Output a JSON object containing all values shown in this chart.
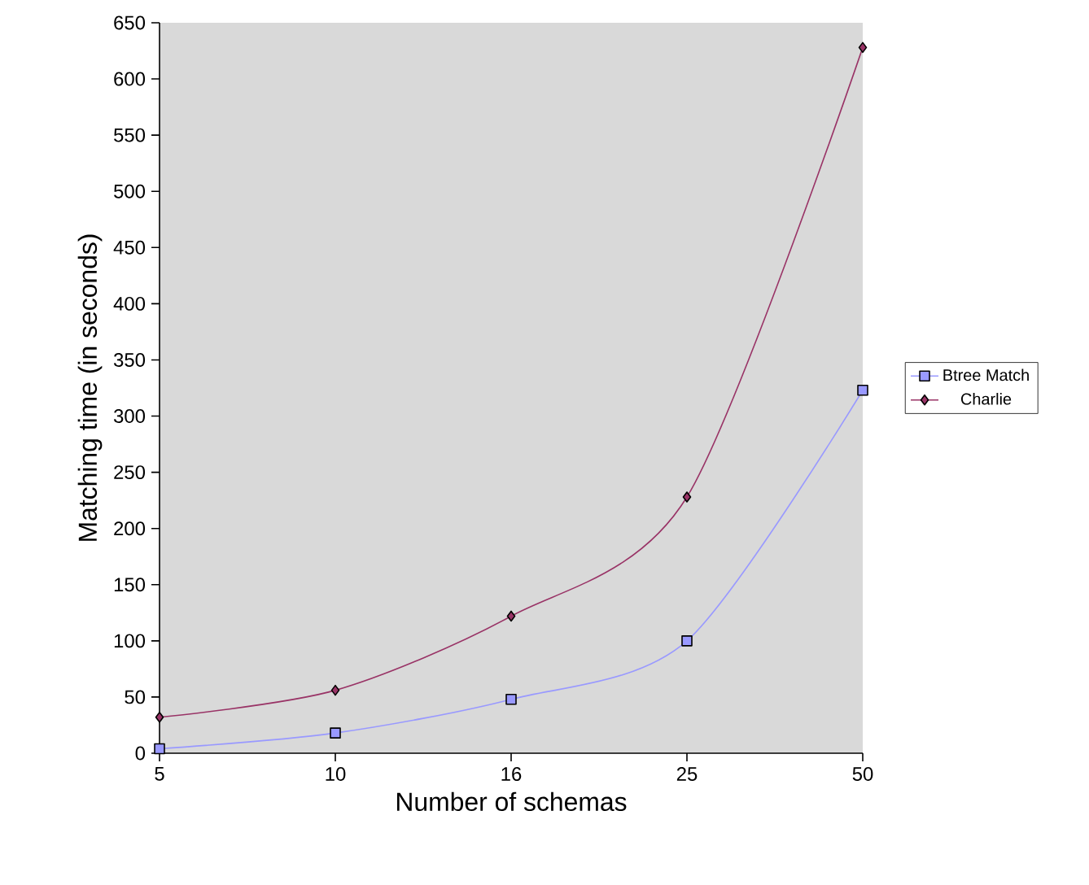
{
  "chart_data": {
    "type": "line",
    "xlabel": "Number of schemas",
    "ylabel": "Matching time (in seconds)",
    "categories": [
      "5",
      "10",
      "16",
      "25",
      "50"
    ],
    "series": [
      {
        "name": "Btree Match",
        "color": "#9999ff",
        "marker": "square",
        "values": [
          4,
          18,
          48,
          100,
          323
        ]
      },
      {
        "name": "Charlie",
        "color": "#993366",
        "marker": "diamond",
        "values": [
          32,
          56,
          122,
          228,
          628
        ]
      }
    ],
    "ylim": [
      0,
      650
    ],
    "yticks": [
      0,
      50,
      100,
      150,
      200,
      250,
      300,
      350,
      400,
      450,
      500,
      550,
      600,
      650
    ],
    "grid": false,
    "legend": "right"
  }
}
